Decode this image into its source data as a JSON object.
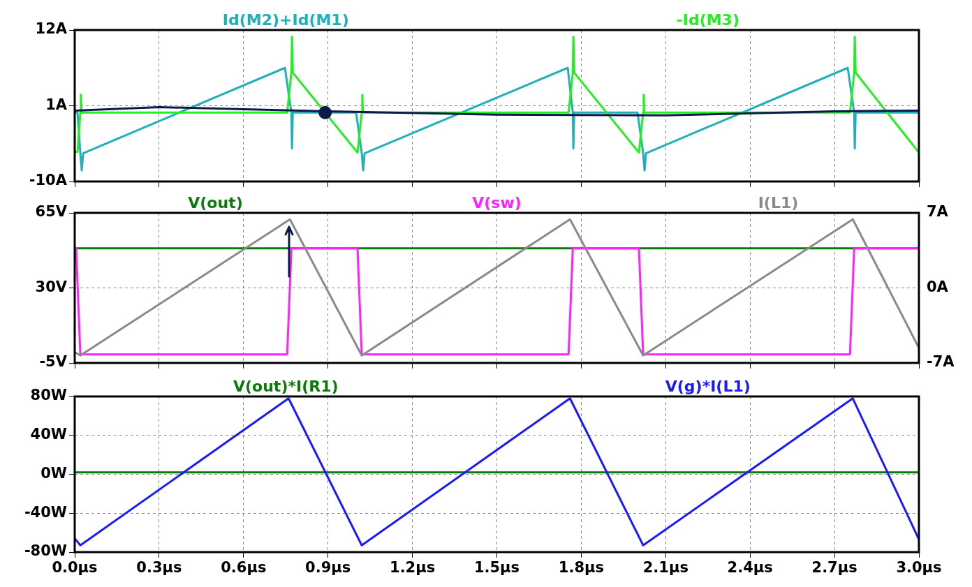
{
  "chart_data": [
    {
      "type": "line",
      "xlim": [
        0,
        3
      ],
      "xticks": [
        {
          "value": 0,
          "label": null
        },
        {
          "value": 0.3,
          "label": null
        },
        {
          "value": 0.6,
          "label": null
        },
        {
          "value": 0.9,
          "label": null
        },
        {
          "value": 1.2,
          "label": null
        },
        {
          "value": 1.5,
          "label": null
        },
        {
          "value": 1.8,
          "label": null
        },
        {
          "value": 2.1,
          "label": null
        },
        {
          "value": 2.4,
          "label": null
        },
        {
          "value": 2.7,
          "label": null
        },
        {
          "value": 3,
          "label": null
        }
      ],
      "ylim": [
        -10,
        12
      ],
      "yticks": [
        {
          "value": -10,
          "label": "-10A"
        },
        {
          "value": 1,
          "label": "1A"
        },
        {
          "value": 12,
          "label": "12A"
        }
      ],
      "grid": true,
      "legend": "top",
      "tick_labels": "y",
      "marker": "none",
      "line_style": "solid",
      "series": [
        {
          "name": "Id(M2)+Id(M1)",
          "color": "#1fb0b8",
          "x": [
            0,
            0.01,
            0.02,
            0.025,
            0.03,
            0.747,
            0.77,
            0.772,
            0.775,
            1.0,
            1.02,
            1.025,
            1.03,
            1.752,
            1.77,
            1.772,
            1.775,
            2.0,
            2.02,
            2.025,
            2.03,
            2.747,
            2.77,
            2.772,
            2.775,
            3.0
          ],
          "values": [
            0,
            0,
            -5.9,
            -8.4,
            -5.9,
            6.5,
            0,
            -5.2,
            0,
            0,
            -5.9,
            -8.4,
            -5.9,
            6.5,
            0,
            -5.2,
            0,
            0,
            -5.9,
            -8.4,
            -5.9,
            6.5,
            0,
            -5.2,
            0,
            0
          ]
        },
        {
          "name": "-Id(M3)",
          "color": "#22ee22",
          "x": [
            0,
            0.01,
            0.02,
            0.022,
            0.024,
            0.755,
            0.77,
            0.772,
            0.775,
            1.005,
            1.02,
            1.022,
            1.024,
            1.755,
            1.77,
            1.772,
            1.775,
            2.005,
            2.02,
            2.022,
            2.024,
            2.755,
            2.77,
            2.772,
            2.775,
            3.0
          ],
          "values": [
            -5.7,
            -5.7,
            0,
            2.6,
            0,
            0,
            5.8,
            11,
            5.8,
            -5.8,
            0,
            2.6,
            0,
            0,
            5.8,
            11,
            5.8,
            -5.8,
            0,
            2.6,
            0,
            0,
            5.8,
            11,
            5.8,
            -5.8
          ]
        },
        {
          "color": "#0b1a4a",
          "x": [
            0,
            0.3,
            0.6,
            0.9,
            1.5,
            2.1,
            2.7,
            3.0
          ],
          "values": [
            0.3,
            0.8,
            0.5,
            0.2,
            -0.3,
            -0.4,
            0.2,
            0.3
          ]
        },
        {
          "type": "scatter",
          "marker": "circle",
          "color": "#0b1a4a",
          "x": [
            0.89
          ],
          "values": [
            0
          ]
        }
      ]
    },
    {
      "type": "line",
      "xlim": [
        0,
        3
      ],
      "xticks": [
        {
          "value": 0,
          "label": null
        },
        {
          "value": 0.3,
          "label": null
        },
        {
          "value": 0.6,
          "label": null
        },
        {
          "value": 0.9,
          "label": null
        },
        {
          "value": 1.2,
          "label": null
        },
        {
          "value": 1.5,
          "label": null
        },
        {
          "value": 1.8,
          "label": null
        },
        {
          "value": 2.1,
          "label": null
        },
        {
          "value": 2.4,
          "label": null
        },
        {
          "value": 2.7,
          "label": null
        },
        {
          "value": 3,
          "label": null
        }
      ],
      "ylim": [
        -5,
        65
      ],
      "yticks": [
        {
          "value": -5,
          "label": "-5V"
        },
        {
          "value": 30,
          "label": "30V"
        },
        {
          "value": 65,
          "label": "65V"
        }
      ],
      "y2lim": [
        -7,
        7
      ],
      "y2ticks": [
        {
          "value": -7,
          "label": "-7A"
        },
        {
          "value": 0,
          "label": "0A"
        },
        {
          "value": 7,
          "label": "7A"
        }
      ],
      "grid": true,
      "legend": "top",
      "tick_labels": "y",
      "marker": "none",
      "line_style": "solid",
      "series": [
        {
          "name": "V(out)",
          "color": "#0a7a0a",
          "x": [
            0,
            3
          ],
          "values": [
            48.5,
            48.5
          ]
        },
        {
          "name": "V(sw)",
          "color": "#ff22ff",
          "x": [
            0,
            0.005,
            0.02,
            0.755,
            0.77,
            1.005,
            1.02,
            1.755,
            1.77,
            2.005,
            2.02,
            2.755,
            2.77,
            3.0
          ],
          "values": [
            48.5,
            48.5,
            -1,
            -1,
            48.5,
            48.5,
            -1,
            -1,
            48.5,
            48.5,
            -1,
            -1,
            48.5,
            48.5
          ]
        },
        {
          "name": "I(L1)",
          "color": "#8a8a8a",
          "axis": "y2",
          "x": [
            0,
            0.02,
            0.765,
            1.02,
            1.76,
            2.02,
            2.765,
            3.0
          ],
          "values": [
            -6.0,
            -6.3,
            6.4,
            -6.3,
            6.4,
            -6.3,
            6.4,
            -5.6
          ]
        }
      ]
    },
    {
      "type": "line",
      "xlim": [
        0,
        3
      ],
      "xticks": [
        {
          "value": 0,
          "label": "0.0µs"
        },
        {
          "value": 0.3,
          "label": "0.3µs"
        },
        {
          "value": 0.6,
          "label": "0.6µs"
        },
        {
          "value": 0.9,
          "label": "0.9µs"
        },
        {
          "value": 1.2,
          "label": "1.2µs"
        },
        {
          "value": 1.5,
          "label": "1.5µs"
        },
        {
          "value": 1.8,
          "label": "1.8µs"
        },
        {
          "value": 2.1,
          "label": "2.1µs"
        },
        {
          "value": 2.4,
          "label": "2.4µs"
        },
        {
          "value": 2.7,
          "label": "2.7µs"
        },
        {
          "value": 3,
          "label": "3.0µs"
        }
      ],
      "ylim": [
        -80,
        80
      ],
      "yticks": [
        {
          "value": -80,
          "label": "-80W"
        },
        {
          "value": -40,
          "label": "-40W"
        },
        {
          "value": 0,
          "label": "0W"
        },
        {
          "value": 40,
          "label": "40W"
        },
        {
          "value": 80,
          "label": "80W"
        }
      ],
      "grid": true,
      "legend": "top",
      "marker": "none",
      "line_style": "solid",
      "series": [
        {
          "name": "V(out)*I(R1)",
          "color": "#0a7a0a",
          "x": [
            0,
            3
          ],
          "values": [
            2,
            2
          ]
        },
        {
          "name": "V(g)*I(L1)",
          "color": "#1a1aff",
          "x": [
            0,
            0.02,
            0.76,
            1.02,
            1.76,
            2.02,
            2.765,
            3.0
          ],
          "values": [
            -66,
            -73,
            78,
            -73,
            78,
            -73,
            78,
            -67
          ]
        }
      ]
    }
  ]
}
